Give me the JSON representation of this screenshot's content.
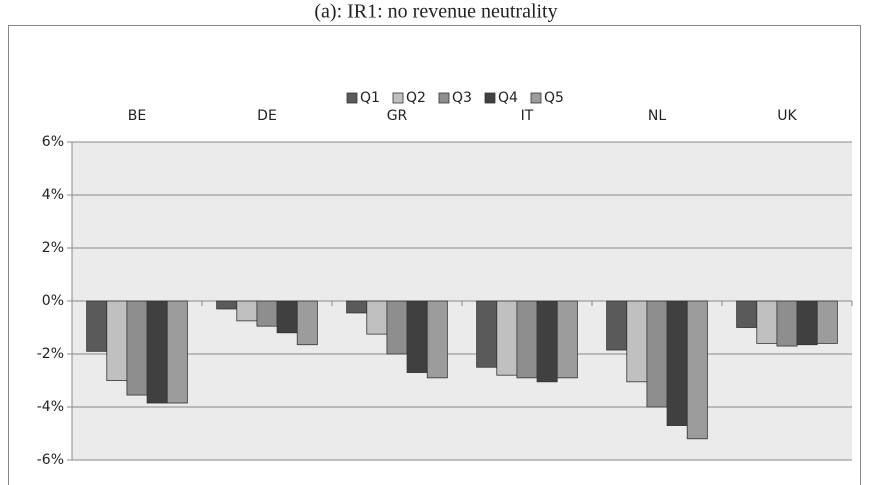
{
  "chart_data": {
    "type": "bar",
    "title": "(a): IR1: no revenue neutrality",
    "categories": [
      "BE",
      "DE",
      "GR",
      "IT",
      "NL",
      "UK"
    ],
    "series": [
      {
        "name": "Q1",
        "color": "#5a5a5a",
        "values": [
          -1.9,
          -0.3,
          -0.45,
          -2.5,
          -1.85,
          -1.0
        ]
      },
      {
        "name": "Q2",
        "color": "#c0c0c0",
        "values": [
          -3.0,
          -0.75,
          -1.25,
          -2.8,
          -3.05,
          -1.6
        ]
      },
      {
        "name": "Q3",
        "color": "#8e8e8e",
        "values": [
          -3.55,
          -0.95,
          -2.0,
          -2.9,
          -4.0,
          -1.7
        ]
      },
      {
        "name": "Q4",
        "color": "#404040",
        "values": [
          -3.85,
          -1.2,
          -2.7,
          -3.05,
          -4.7,
          -1.65
        ]
      },
      {
        "name": "Q5",
        "color": "#9c9c9c",
        "values": [
          -3.85,
          -1.65,
          -2.9,
          -2.9,
          -5.2,
          -1.6
        ]
      }
    ],
    "ylim": [
      -6,
      6
    ],
    "yticks": [
      {
        "value": 6,
        "label": "6%"
      },
      {
        "value": 4,
        "label": "4%"
      },
      {
        "value": 2,
        "label": "2%"
      },
      {
        "value": 0,
        "label": "0%"
      },
      {
        "value": -2,
        "label": "-2%"
      },
      {
        "value": -4,
        "label": "-4%"
      },
      {
        "value": -6,
        "label": "-6%"
      }
    ],
    "grid": true,
    "legend": "top"
  }
}
